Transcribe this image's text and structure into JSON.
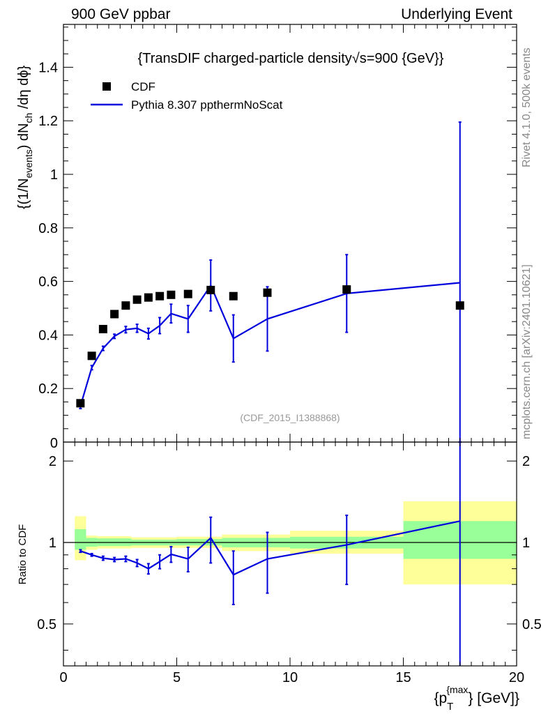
{
  "header": {
    "left": "900 GeV ppbar",
    "right": "Underlying Event"
  },
  "side_labels": {
    "rivet": "Rivet 4.1.0,  500k events",
    "mcplots": "mcplots.cern.ch [arXiv:2401.10621]"
  },
  "colors": {
    "mc": "#0000dd",
    "data": "#000000",
    "band_outer": "#ffff99",
    "band_inner": "#99ff99"
  },
  "chart_data": [
    {
      "type": "scatter",
      "panel": "main",
      "title": "{TransDIF charged-particle density",
      "title_sqrt": "√s",
      "title_tail": "=900 {GeV}}",
      "watermark": "(CDF_2015_I1388868)",
      "ylabel": {
        "p1": "{(1/N",
        "sub1": "events",
        "p2": ") dN",
        "sub2": "ch",
        "p3": " /dη  dϕ}"
      },
      "xlim": [
        0,
        20
      ],
      "ylim": [
        0,
        1.56
      ],
      "yticks": [
        0.2,
        0.4,
        0.6,
        0.8,
        1,
        1.2,
        1.4
      ],
      "ytick_labels": [
        "0.2",
        "0.4",
        "0.6",
        "0.8",
        "1",
        "1.2",
        "1.4"
      ],
      "bottom_tick_label": "0",
      "legend": {
        "placement": "top-left",
        "data_label": "CDF",
        "mc_label": "Pythia 8.307 ppthermNoScat"
      },
      "series": [
        {
          "name": "CDF",
          "style": "markers",
          "x": [
            0.75,
            1.25,
            1.75,
            2.25,
            2.75,
            3.25,
            3.75,
            4.25,
            4.75,
            5.5,
            6.5,
            7.5,
            9.0,
            12.5,
            17.5
          ],
          "y": [
            0.145,
            0.322,
            0.422,
            0.478,
            0.51,
            0.532,
            0.54,
            0.545,
            0.55,
            0.553,
            0.568,
            0.545,
            0.558,
            0.57,
            0.51
          ]
        },
        {
          "name": "Pythia 8.307 ppthermNoScat",
          "style": "line",
          "x": [
            0.75,
            1.25,
            1.75,
            2.25,
            2.75,
            3.25,
            3.75,
            4.25,
            4.75,
            5.5,
            6.5,
            7.5,
            9.0,
            12.5,
            17.5
          ],
          "y": [
            0.135,
            0.278,
            0.35,
            0.395,
            0.42,
            0.425,
            0.405,
            0.435,
            0.48,
            0.46,
            0.585,
            0.387,
            0.46,
            0.555,
            0.595
          ],
          "err": [
            0.01,
            0.008,
            0.008,
            0.008,
            0.012,
            0.015,
            0.02,
            0.03,
            0.035,
            0.05,
            0.095,
            0.088,
            0.12,
            0.145,
            0.6
          ]
        }
      ]
    },
    {
      "type": "line",
      "panel": "ratio",
      "ylabel": "Ratio to CDF",
      "xlabel": {
        "p1": "{p",
        "sub": "T",
        "sup": "{max",
        "p2": "} [GeV]}"
      },
      "xlim": [
        0,
        20
      ],
      "ylim": [
        0.35,
        2.35
      ],
      "xticks": [
        0,
        5,
        10,
        15,
        20
      ],
      "xtick_labels": [
        "0",
        "5",
        "10",
        "15",
        "20"
      ],
      "yticks": [
        0.5,
        1,
        2
      ],
      "ytick_labels": [
        "0.5",
        "1",
        "2"
      ],
      "bands": [
        {
          "x0": 0.5,
          "x1": 1.0,
          "outer": [
            0.86,
            1.25
          ],
          "inner": [
            0.94,
            1.12
          ]
        },
        {
          "x0": 1.0,
          "x1": 1.5,
          "outer": [
            0.94,
            1.06
          ],
          "inner": [
            0.965,
            1.04
          ]
        },
        {
          "x0": 1.5,
          "x1": 3.0,
          "outer": [
            0.95,
            1.055
          ],
          "inner": [
            0.97,
            1.035
          ]
        },
        {
          "x0": 3.0,
          "x1": 5.0,
          "outer": [
            0.955,
            1.045
          ],
          "inner": [
            0.975,
            1.025
          ]
        },
        {
          "x0": 5.0,
          "x1": 7.0,
          "outer": [
            0.955,
            1.05
          ],
          "inner": [
            0.975,
            1.03
          ]
        },
        {
          "x0": 7.0,
          "x1": 10.0,
          "outer": [
            0.93,
            1.07
          ],
          "inner": [
            0.96,
            1.04
          ]
        },
        {
          "x0": 10.0,
          "x1": 15.0,
          "outer": [
            0.91,
            1.105
          ],
          "inner": [
            0.95,
            1.05
          ]
        },
        {
          "x0": 15.0,
          "x1": 20.0,
          "outer": [
            0.7,
            1.42
          ],
          "inner": [
            0.87,
            1.2
          ]
        }
      ],
      "series": [
        {
          "name": "Pythia 8.307 ppthermNoScat / CDF",
          "x": [
            0.75,
            1.25,
            1.75,
            2.25,
            2.75,
            3.25,
            3.75,
            4.25,
            4.75,
            5.5,
            6.5,
            7.5,
            9.0,
            12.5,
            17.5
          ],
          "y": [
            0.93,
            0.9,
            0.875,
            0.865,
            0.87,
            0.84,
            0.8,
            0.85,
            0.905,
            0.87,
            1.04,
            0.76,
            0.87,
            0.98,
            1.2
          ],
          "err": [
            0.01,
            0.01,
            0.015,
            0.015,
            0.02,
            0.025,
            0.035,
            0.05,
            0.06,
            0.09,
            0.2,
            0.17,
            0.22,
            0.28,
            1.15
          ]
        }
      ]
    }
  ]
}
